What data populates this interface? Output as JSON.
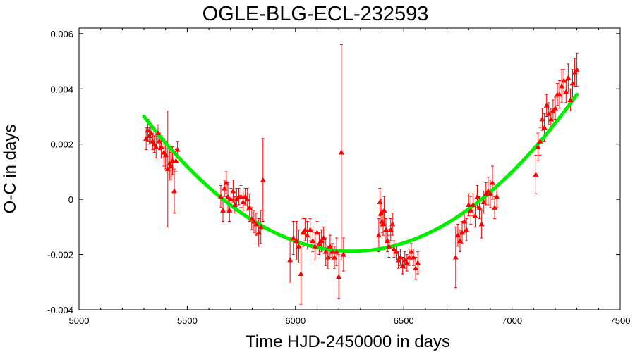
{
  "chart_data": {
    "type": "scatter",
    "title": "OGLE-BLG-ECL-232593",
    "xlabel": "Time HJD-2450000 in days",
    "ylabel": "O-C in days",
    "xlim": [
      5000,
      7500
    ],
    "ylim": [
      -0.004,
      0.0062
    ],
    "x_ticks": [
      5000,
      5500,
      6000,
      6500,
      7000,
      7500
    ],
    "x_tick_labels": [
      "5000",
      "5500",
      "6000",
      "6500",
      "7000",
      "7500"
    ],
    "y_ticks": [
      -0.004,
      -0.002,
      0,
      0.002,
      0.004,
      0.006
    ],
    "y_tick_labels": [
      "-0.004",
      "-0.002",
      "0",
      "0.002",
      "0.004",
      "0.006"
    ],
    "grid": false,
    "legend": "none",
    "colors": {
      "points": "#ff0000",
      "fit": "#00ee00",
      "axes": "#000000"
    },
    "fit": {
      "name": "",
      "model": "quadratic",
      "x": [
        5300,
        5500,
        5700,
        5900,
        6100,
        6300,
        6450,
        6600,
        6800,
        7000,
        7200,
        7300
      ],
      "y": [
        0.0023,
        0.0013,
        0.0003,
        -0.0006,
        -0.0013,
        -0.0019,
        -0.002,
        -0.0018,
        -0.0009,
        0.0008,
        0.0029,
        0.0043
      ]
    },
    "series": [
      {
        "name": "",
        "x": [
          5310,
          5318,
          5325,
          5332,
          5340,
          5348,
          5356,
          5365,
          5372,
          5380,
          5392,
          5400,
          5410,
          5418,
          5425,
          5432,
          5440,
          5448,
          5455,
          5655,
          5665,
          5672,
          5680,
          5688,
          5695,
          5702,
          5712,
          5720,
          5728,
          5738,
          5748,
          5758,
          5768,
          5778,
          5788,
          5798,
          5808,
          5818,
          5830,
          5840,
          5850,
          5975,
          5990,
          6005,
          6015,
          6025,
          6035,
          6045,
          6055,
          6068,
          6080,
          6090,
          6100,
          6110,
          6120,
          6130,
          6140,
          6150,
          6160,
          6170,
          6180,
          6190,
          6200,
          6212,
          6222,
          6385,
          6390,
          6395,
          6400,
          6405,
          6410,
          6418,
          6425,
          6432,
          6440,
          6448,
          6455,
          6465,
          6475,
          6485,
          6495,
          6505,
          6515,
          6525,
          6535,
          6545,
          6555,
          6565,
          6740,
          6750,
          6760,
          6770,
          6780,
          6790,
          6800,
          6810,
          6820,
          6830,
          6840,
          6850,
          6860,
          6870,
          6880,
          6890,
          6900,
          6910,
          6920,
          6930,
          7110,
          7120,
          7130,
          7140,
          7150,
          7160,
          7170,
          7180,
          7190,
          7200,
          7210,
          7220,
          7230,
          7240,
          7250,
          7260,
          7270,
          7280,
          7290,
          7300
        ],
        "y": [
          0.0022,
          0.0025,
          0.0023,
          0.0024,
          0.0021,
          0.002,
          0.0019,
          0.0024,
          0.0021,
          0.0019,
          0.0017,
          0.0016,
          0.0011,
          0.0013,
          0.0012,
          0.0014,
          0.0003,
          0.0014,
          0.0018,
          0.0001,
          -0.0004,
          0.0004,
          0.0006,
          0.0001,
          -0.0004,
          0.0,
          0.0003,
          -0.0002,
          0.0,
          0.0001,
          0.0001,
          -0.0001,
          0.0001,
          0.0,
          -0.0003,
          -0.0007,
          -0.0008,
          -0.0009,
          -0.0012,
          -0.001,
          0.0007,
          -0.0022,
          -0.0014,
          -0.0015,
          -0.0017,
          -0.0027,
          -0.0012,
          -0.0011,
          -0.0013,
          -0.0011,
          -0.0015,
          -0.0017,
          -0.0012,
          -0.0016,
          -0.0015,
          -0.0014,
          -0.0019,
          -0.0021,
          -0.0017,
          -0.0019,
          -0.0021,
          -0.0019,
          -0.0028,
          0.0017,
          -0.002,
          -0.0013,
          -0.0001,
          -0.0005,
          -0.0008,
          -0.0009,
          -0.0004,
          -0.0011,
          -0.0015,
          -0.0017,
          -0.0011,
          -0.0009,
          -0.0018,
          -0.0019,
          -0.0022,
          -0.0021,
          -0.0024,
          -0.0022,
          -0.0023,
          -0.0021,
          -0.0019,
          -0.0021,
          -0.0025,
          -0.0023,
          -0.0021,
          -0.0013,
          -0.0015,
          -0.0012,
          -0.0008,
          -0.0011,
          -0.0002,
          -0.0004,
          -0.0002,
          -0.0006,
          0.0001,
          -0.0003,
          -0.0009,
          -0.0001,
          0.0002,
          0.0003,
          0.0002,
          0.0006,
          -0.0003,
          0.0001,
          0.0009,
          0.0019,
          0.0021,
          0.0029,
          0.0026,
          0.0034,
          0.0031,
          0.0029,
          0.0032,
          0.0033,
          0.0038,
          0.0038,
          0.0041,
          0.0043,
          0.0039,
          0.0044,
          0.0036,
          0.0042,
          0.0046,
          0.0047
        ],
        "yerr": [
          0.0004,
          0.0004,
          0.0003,
          0.0003,
          0.0003,
          0.0003,
          0.0004,
          0.0003,
          0.0003,
          0.0004,
          0.0005,
          0.0005,
          0.0021,
          0.0006,
          0.0005,
          0.0005,
          0.0008,
          0.0004,
          0.0003,
          0.0004,
          0.0004,
          0.0003,
          0.0004,
          0.0005,
          0.0004,
          0.0004,
          0.0004,
          0.0003,
          0.0004,
          0.0003,
          0.0004,
          0.0004,
          0.0003,
          0.0004,
          0.0005,
          0.0004,
          0.0004,
          0.0004,
          0.0005,
          0.0006,
          0.0015,
          0.0008,
          0.0006,
          0.0007,
          0.0006,
          0.0011,
          0.0005,
          0.0004,
          0.0005,
          0.0004,
          0.0004,
          0.0005,
          0.0004,
          0.0004,
          0.0004,
          0.0004,
          0.0005,
          0.0004,
          0.0004,
          0.0003,
          0.0004,
          0.0005,
          0.0008,
          0.0039,
          0.0006,
          0.0006,
          0.0005,
          0.0005,
          0.0004,
          0.0004,
          0.0005,
          0.0004,
          0.0004,
          0.0004,
          0.0004,
          0.0004,
          0.0003,
          0.0003,
          0.0003,
          0.0003,
          0.0003,
          0.0003,
          0.0003,
          0.0003,
          0.0003,
          0.0003,
          0.0004,
          0.0004,
          0.0011,
          0.0004,
          0.0004,
          0.0004,
          0.0004,
          0.0004,
          0.0004,
          0.0005,
          0.0004,
          0.0004,
          0.0004,
          0.0004,
          0.0005,
          0.0004,
          0.0004,
          0.0005,
          0.0005,
          0.0006,
          0.0004,
          0.0004,
          0.0007,
          0.0005,
          0.0005,
          0.0004,
          0.0005,
          0.0004,
          0.0004,
          0.0004,
          0.0004,
          0.0004,
          0.0004,
          0.0005,
          0.0006,
          0.0004,
          0.0004,
          0.0005,
          0.0004,
          0.0005,
          0.0005,
          0.0006
        ]
      }
    ]
  }
}
